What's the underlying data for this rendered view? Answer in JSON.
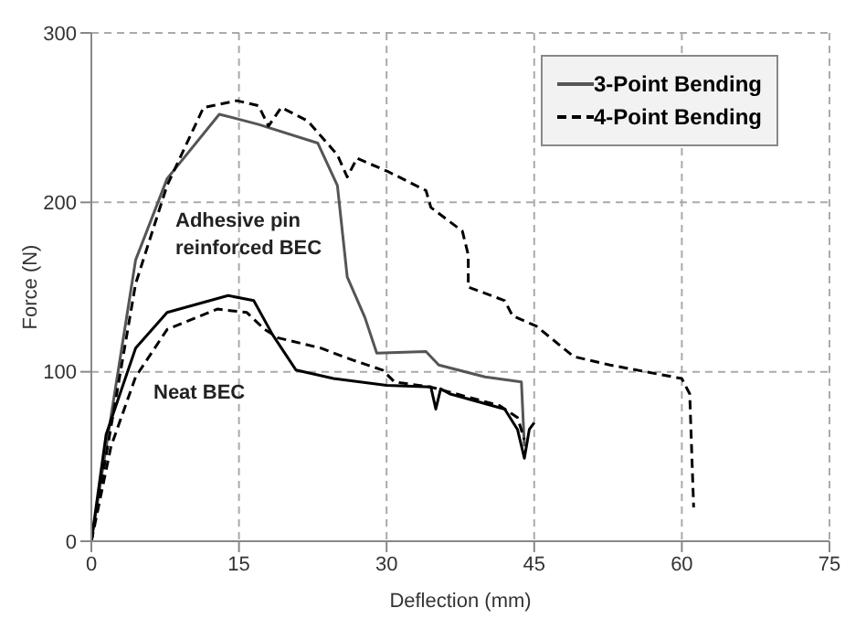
{
  "chart_data": {
    "type": "line",
    "xlabel": "Deflection (mm)",
    "ylabel": "Force (N)",
    "xlim": [
      0,
      75
    ],
    "xticks": [
      0,
      15,
      30,
      45,
      60,
      75
    ],
    "ylim": [
      0,
      300
    ],
    "yticks": [
      0,
      100,
      200,
      300
    ],
    "grid": true,
    "legend": "top right",
    "marker": "none",
    "annotations": [
      "Adhesive pin reinforced BEC",
      "Neat BEC"
    ],
    "series": [
      {
        "name": "3-Point Bending",
        "color": "#555555",
        "line_style": "solid",
        "x": [
          0,
          4.5,
          7.7,
          13,
          17,
          23,
          25,
          26,
          27.8,
          29,
          34,
          35.3,
          40,
          43.7,
          44
        ],
        "values": [
          0,
          166,
          214,
          252,
          246,
          235,
          210,
          156,
          132,
          111,
          112,
          104,
          97,
          94,
          56
        ]
      },
      {
        "name": "4-Point Bending",
        "color": "#000000",
        "line_style": "dashed",
        "x": [
          0,
          4.5,
          7.7,
          11.4,
          14.8,
          17,
          18,
          19.3,
          22,
          25,
          26,
          27,
          30.2,
          34,
          34.5,
          37.7,
          38.3,
          38.3,
          42,
          42.8,
          45.2,
          49,
          52.7,
          60,
          60.8,
          61.2
        ],
        "values": [
          0,
          152,
          210,
          256,
          260,
          257,
          245,
          256,
          248,
          228,
          215,
          226,
          218,
          207,
          197,
          183,
          169,
          150,
          142,
          133,
          127,
          109,
          104,
          96,
          87,
          20
        ]
      },
      {
        "color": "#000000",
        "line_style": "solid",
        "x": [
          0,
          1.5,
          4.5,
          7.7,
          13.9,
          16.5,
          18.4,
          20.8,
          24.6,
          30,
          34.5,
          35,
          35.5,
          36.4,
          42,
          43.3,
          44,
          44.5,
          45
        ],
        "values": [
          0,
          63,
          114,
          135,
          145,
          142,
          122,
          101,
          96,
          92,
          91,
          78,
          90,
          87,
          78,
          66,
          49,
          66,
          70
        ]
      },
      {
        "color": "#000000",
        "line_style": "dashed",
        "x": [
          0,
          2,
          4.5,
          7.7,
          12.8,
          15.8,
          17.6,
          19,
          23.3,
          26.5,
          29.6,
          30.8,
          34.5,
          41.5,
          43.3,
          44
        ],
        "values": [
          0,
          56,
          97,
          125,
          137,
          135,
          125,
          120,
          114,
          107,
          101,
          94,
          91,
          80,
          73,
          60
        ]
      }
    ]
  }
}
